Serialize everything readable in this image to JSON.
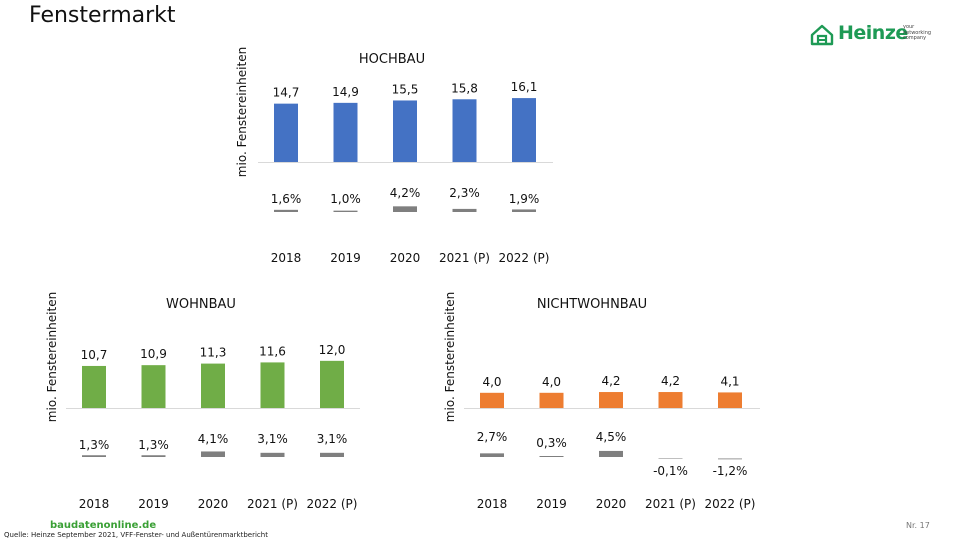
{
  "page": {
    "title": "Fenstermarkt",
    "logo_text": "Heinze",
    "logo_tagline": [
      "your",
      "networking",
      "company"
    ],
    "footer_site": "baudatenonline.de",
    "footer_source": "Quelle: Heinze September 2021, VFF-Fenster- und Außentürenmarktbericht",
    "slide_number": "Nr. 17"
  },
  "colors": {
    "hochbau": "#4472c4",
    "wohnbau": "#70ad47",
    "nichtwohnbau": "#ed7d31",
    "change": "#7f7f7f",
    "baseline": "#d9d9d9",
    "logo": "#1e9a55"
  },
  "chart_data": [
    {
      "type": "bar",
      "title": "HOCHBAU",
      "ylabel": "mio. Fenstereinheiten",
      "categories": [
        "2018",
        "2019",
        "2020",
        "2021 (P)",
        "2022 (P)"
      ],
      "values": [
        14.7,
        14.9,
        15.5,
        15.8,
        16.1
      ],
      "value_labels": [
        "14,7",
        "14,9",
        "15,5",
        "15,8",
        "16,1"
      ],
      "change_values": [
        1.6,
        1.0,
        4.2,
        2.3,
        1.9
      ],
      "change_labels": [
        "1,6%",
        "1,0%",
        "4,2%",
        "2,3%",
        "1,9%"
      ],
      "color": "#4472c4"
    },
    {
      "type": "bar",
      "title": "WOHNBAU",
      "ylabel": "mio. Fenstereinheiten",
      "categories": [
        "2018",
        "2019",
        "2020",
        "2021 (P)",
        "2022 (P)"
      ],
      "values": [
        10.7,
        10.9,
        11.3,
        11.6,
        12.0
      ],
      "value_labels": [
        "10,7",
        "10,9",
        "11,3",
        "11,6",
        "12,0"
      ],
      "change_values": [
        1.3,
        1.3,
        4.1,
        3.1,
        3.1
      ],
      "change_labels": [
        "1,3%",
        "1,3%",
        "4,1%",
        "3,1%",
        "3,1%"
      ],
      "color": "#70ad47"
    },
    {
      "type": "bar",
      "title": "NICHTWOHNBAU",
      "ylabel": "mio. Fenstereinheiten",
      "categories": [
        "2018",
        "2019",
        "2020",
        "2021 (P)",
        "2022 (P)"
      ],
      "values": [
        4.0,
        4.0,
        4.2,
        4.2,
        4.1
      ],
      "value_labels": [
        "4,0",
        "4,0",
        "4,2",
        "4,2",
        "4,1"
      ],
      "change_values": [
        2.7,
        0.3,
        4.5,
        -0.1,
        -1.2
      ],
      "change_labels": [
        "2,7%",
        "0,3%",
        "4,5%",
        "-0,1%",
        "-1,2%"
      ],
      "color": "#ed7d31"
    }
  ]
}
